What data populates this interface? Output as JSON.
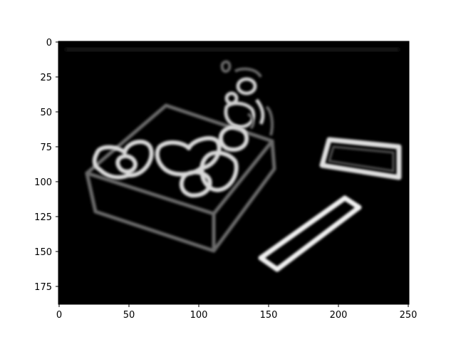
{
  "image": {
    "kind": "edge-detection plot of a gift box with a bow and two rectangular bars",
    "colormap": "gray",
    "background": "#000000"
  },
  "axes": {
    "x_ticks": [
      "0",
      "50",
      "100",
      "150",
      "200",
      "250"
    ],
    "y_ticks": [
      "0",
      "25",
      "50",
      "75",
      "100",
      "125",
      "150",
      "175"
    ],
    "xlim": [
      0,
      251
    ],
    "ylim": [
      188,
      0
    ],
    "frame_color": "#000000"
  }
}
